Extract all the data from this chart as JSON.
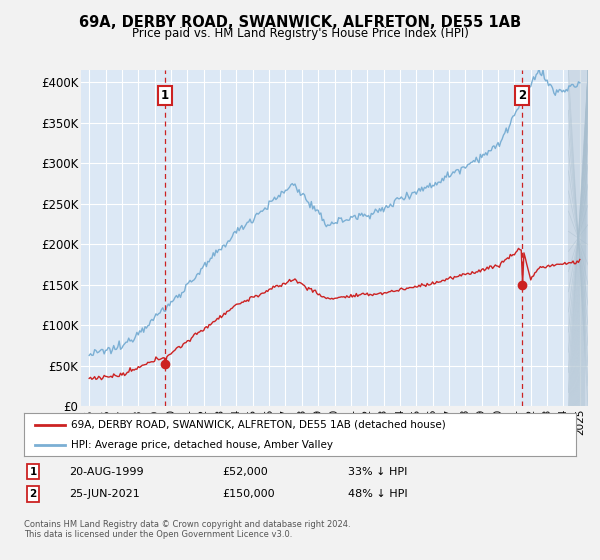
{
  "title": "69A, DERBY ROAD, SWANWICK, ALFRETON, DE55 1AB",
  "subtitle": "Price paid vs. HM Land Registry's House Price Index (HPI)",
  "ylabel_ticks": [
    "£0",
    "£50K",
    "£100K",
    "£150K",
    "£200K",
    "£250K",
    "£300K",
    "£350K",
    "£400K"
  ],
  "ytick_vals": [
    0,
    50000,
    100000,
    150000,
    200000,
    250000,
    300000,
    350000,
    400000
  ],
  "ylim": [
    0,
    415000
  ],
  "hpi_color": "#7bafd4",
  "price_color": "#cc2222",
  "marker1_date_num": 1999.64,
  "marker1_price": 52000,
  "marker1_label": "1",
  "marker2_date_num": 2021.48,
  "marker2_price": 150000,
  "marker2_label": "2",
  "legend_entry1": "69A, DERBY ROAD, SWANWICK, ALFRETON, DE55 1AB (detached house)",
  "legend_entry2": "HPI: Average price, detached house, Amber Valley",
  "note1_date": "20-AUG-1999",
  "note1_price": "£52,000",
  "note1_info": "33% ↓ HPI",
  "note2_date": "25-JUN-2021",
  "note2_price": "£150,000",
  "note2_info": "48% ↓ HPI",
  "footnote": "Contains HM Land Registry data © Crown copyright and database right 2024.\nThis data is licensed under the Open Government Licence v3.0.",
  "fig_bg": "#f2f2f2",
  "plot_bg": "#dce8f5",
  "grid_color": "#ffffff",
  "hatch_color": "#c0ceda"
}
